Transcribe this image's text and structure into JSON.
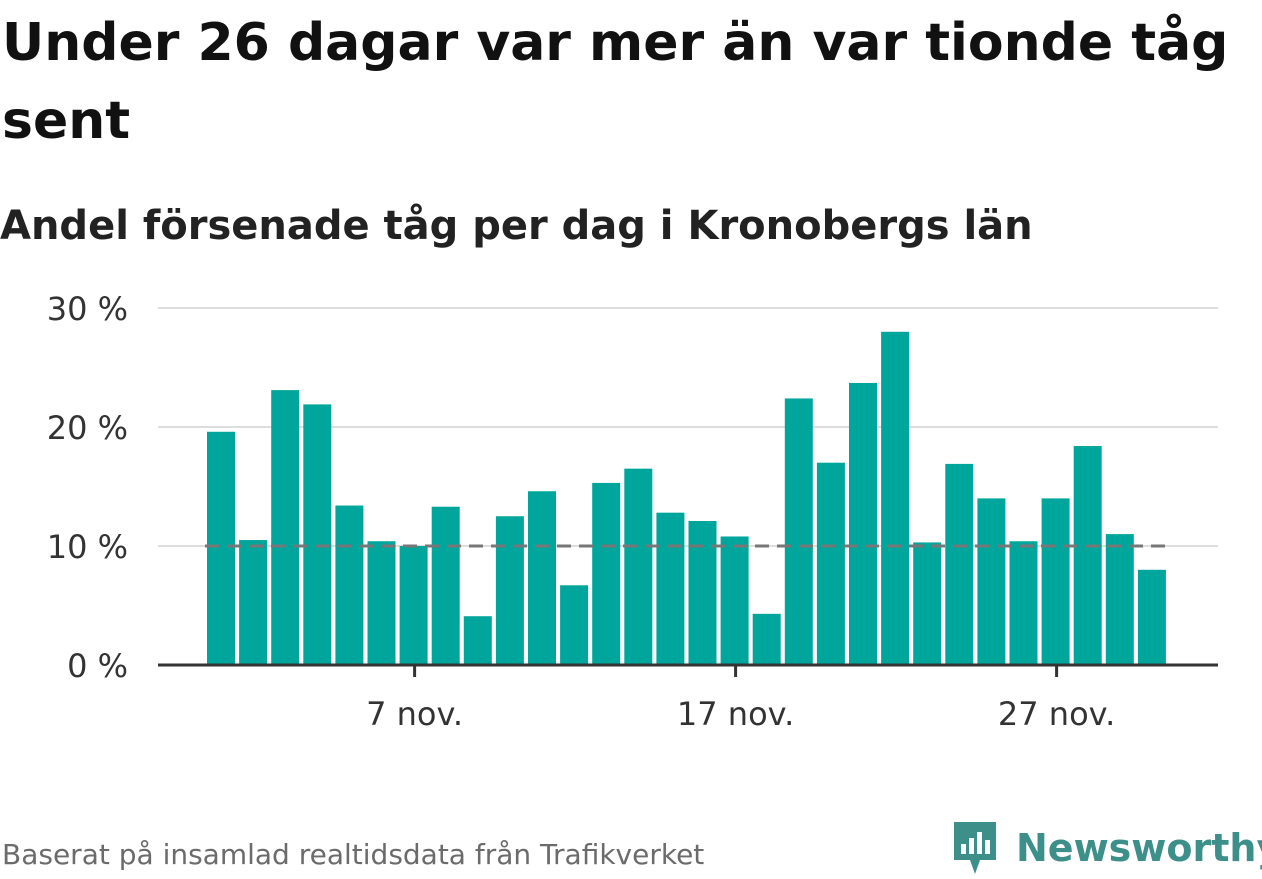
{
  "header": {
    "title": "Under 26 dagar var mer än var tionde tåg sent",
    "subtitle": "Andel försenade tåg per dag i Kronobergs län"
  },
  "footer": {
    "source": "Baserat på insamlad realtidsdata från Trafikverket",
    "brand": "Newsworthy"
  },
  "colors": {
    "bar": "#00a69c",
    "reference_line": "#777777",
    "grid": "#dddddd",
    "axis": "#333333",
    "brand": "#3d8f8a"
  },
  "chart_data": {
    "type": "bar",
    "x_unit": "date",
    "categories": [
      "2023-11-01",
      "2023-11-02",
      "2023-11-03",
      "2023-11-04",
      "2023-11-05",
      "2023-11-06",
      "2023-11-07",
      "2023-11-08",
      "2023-11-09",
      "2023-11-10",
      "2023-11-11",
      "2023-11-12",
      "2023-11-13",
      "2023-11-14",
      "2023-11-15",
      "2023-11-16",
      "2023-11-17",
      "2023-11-18",
      "2023-11-19",
      "2023-11-20",
      "2023-11-21",
      "2023-11-22",
      "2023-11-23",
      "2023-11-24",
      "2023-11-25",
      "2023-11-26",
      "2023-11-27",
      "2023-11-28",
      "2023-11-29",
      "2023-11-30"
    ],
    "values": [
      19.6,
      10.5,
      23.1,
      21.9,
      13.4,
      10.4,
      10.0,
      13.3,
      4.1,
      12.5,
      14.6,
      6.7,
      15.3,
      16.5,
      12.8,
      12.1,
      10.8,
      4.3,
      22.4,
      17.0,
      23.7,
      28.0,
      10.3,
      16.9,
      14.0,
      10.4,
      14.0,
      18.4,
      11.0,
      8.0
    ],
    "x_ticks": [
      {
        "label": "7 nov.",
        "date": "2023-11-07"
      },
      {
        "label": "17 nov.",
        "date": "2023-11-17"
      },
      {
        "label": "27 nov.",
        "date": "2023-11-27"
      }
    ],
    "y_ticks": [
      {
        "label": "0 %",
        "value": 0
      },
      {
        "label": "10 %",
        "value": 10
      },
      {
        "label": "20 %",
        "value": 20
      },
      {
        "label": "30 %",
        "value": 30
      }
    ],
    "ylim": [
      0,
      30
    ],
    "reference_line": 10,
    "grid": true,
    "xlabel": "",
    "ylabel": ""
  }
}
